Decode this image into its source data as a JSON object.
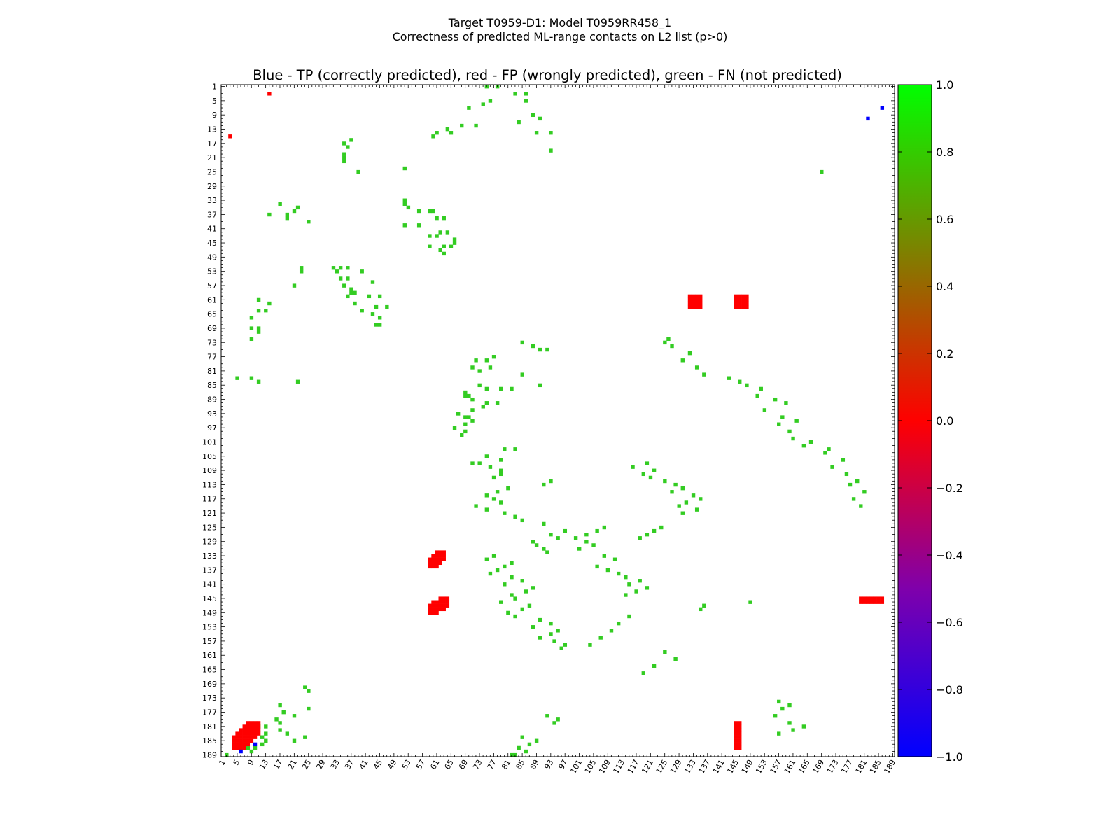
{
  "header": {
    "title_line1": "Target T0959-D1: Model T0959RR458_1",
    "title_line2": "Correctness of predicted ML-range contacts on L2 list (p>0)"
  },
  "chart_data": {
    "type": "heatmap",
    "title": "Blue - TP (correctly predicted), red - FP (wrongly predicted), green - FN (not predicted)",
    "xlabel": "",
    "ylabel": "",
    "xlim": [
      1,
      189
    ],
    "ylim": [
      1,
      189
    ],
    "tick_labels": [
      "1",
      "5",
      "9",
      "13",
      "17",
      "21",
      "25",
      "29",
      "33",
      "37",
      "41",
      "45",
      "49",
      "53",
      "57",
      "61",
      "65",
      "69",
      "73",
      "77",
      "81",
      "85",
      "89",
      "93",
      "97",
      "101",
      "105",
      "109",
      "113",
      "117",
      "121",
      "125",
      "129",
      "133",
      "137",
      "141",
      "145",
      "149",
      "153",
      "157",
      "161",
      "165",
      "169",
      "173",
      "177",
      "181",
      "185",
      "189"
    ],
    "colorbar": {
      "range": [
        -1.0,
        1.0
      ],
      "tick_labels": [
        "1.0",
        "0.8",
        "0.6",
        "0.4",
        "0.2",
        "0.0",
        "−0.2",
        "−0.4",
        "−0.6",
        "−0.8",
        "−1.0"
      ],
      "colors": [
        "#00ff00",
        "#ff0000",
        "#0000ff"
      ]
    },
    "colors": {
      "tp": "#0000ff",
      "fp": "#ff0000",
      "fn": "#33cc22"
    },
    "fp_regions": [
      {
        "i": [
          180,
          187
        ],
        "j": [
          4,
          11
        ]
      },
      {
        "i": [
          60,
          63
        ],
        "j": [
          132,
          135
        ]
      },
      {
        "i": [
          60,
          63
        ],
        "j": [
          145,
          148
        ]
      },
      {
        "i": [
          132,
          136
        ],
        "j": [
          59,
          63
        ]
      },
      {
        "i": [
          145,
          149
        ],
        "j": [
          59,
          64
        ]
      },
      {
        "i": [
          145,
          146
        ],
        "j": [
          180,
          186
        ]
      },
      {
        "i": [
          180,
          187
        ],
        "j": [
          145,
          146
        ]
      }
    ],
    "fp_points": [
      [
        3,
        14
      ],
      [
        15,
        3
      ]
    ],
    "tp_points": [
      [
        7,
        186
      ],
      [
        10,
        182
      ],
      [
        186,
        10
      ],
      [
        188,
        6
      ]
    ],
    "fn_points": [
      [
        1,
        75
      ],
      [
        1,
        78
      ],
      [
        3,
        83
      ],
      [
        3,
        86
      ],
      [
        5,
        86
      ],
      [
        5,
        76
      ],
      [
        6,
        74
      ],
      [
        7,
        70
      ],
      [
        9,
        88
      ],
      [
        10,
        90
      ],
      [
        11,
        84
      ],
      [
        12,
        68
      ],
      [
        12,
        72
      ],
      [
        13,
        64
      ],
      [
        14,
        61
      ],
      [
        14,
        65
      ],
      [
        14,
        89
      ],
      [
        14,
        93
      ],
      [
        15,
        60
      ],
      [
        16,
        37
      ],
      [
        17,
        35
      ],
      [
        18,
        36
      ],
      [
        19,
        93
      ],
      [
        20,
        35
      ],
      [
        21,
        35
      ],
      [
        22,
        35
      ],
      [
        24,
        52
      ],
      [
        25,
        39
      ],
      [
        25,
        169
      ],
      [
        33,
        52
      ],
      [
        34,
        52
      ],
      [
        34,
        17
      ],
      [
        35,
        53
      ],
      [
        35,
        22
      ],
      [
        36,
        21
      ],
      [
        36,
        56
      ],
      [
        36,
        59
      ],
      [
        36,
        60
      ],
      [
        37,
        14
      ],
      [
        37,
        19
      ],
      [
        38,
        19
      ],
      [
        38,
        61
      ],
      [
        38,
        63
      ],
      [
        39,
        25
      ],
      [
        40,
        52
      ],
      [
        40,
        56
      ],
      [
        42,
        62
      ],
      [
        42,
        64
      ],
      [
        43,
        59
      ],
      [
        43,
        61
      ],
      [
        44,
        66
      ],
      [
        45,
        66
      ],
      [
        46,
        63
      ],
      [
        46,
        65
      ],
      [
        46,
        59
      ],
      [
        47,
        62
      ],
      [
        48,
        63
      ],
      [
        52,
        23
      ],
      [
        53,
        23
      ],
      [
        52,
        32
      ],
      [
        52,
        34
      ],
      [
        53,
        33
      ],
      [
        52,
        36
      ],
      [
        53,
        40
      ],
      [
        55,
        34
      ],
      [
        55,
        36
      ],
      [
        56,
        43
      ],
      [
        57,
        35
      ],
      [
        57,
        21
      ],
      [
        58,
        37
      ],
      [
        59,
        37
      ],
      [
        59,
        38
      ],
      [
        60,
        36
      ],
      [
        60,
        42
      ],
      [
        60,
        45
      ],
      [
        61,
        11
      ],
      [
        62,
        38
      ],
      [
        62,
        14
      ],
      [
        63,
        44
      ],
      [
        63,
        47
      ],
      [
        64,
        11
      ],
      [
        64,
        40
      ],
      [
        64,
        13
      ],
      [
        65,
        43
      ],
      [
        66,
        9
      ],
      [
        66,
        45
      ],
      [
        68,
        44
      ],
      [
        68,
        45
      ],
      [
        69,
        9
      ],
      [
        69,
        11
      ],
      [
        70,
        11
      ],
      [
        72,
        9
      ],
      [
        73,
        85
      ],
      [
        74,
        88
      ],
      [
        75,
        92
      ],
      [
        75,
        90
      ],
      [
        77,
        77
      ],
      [
        78,
        72
      ],
      [
        78,
        75
      ],
      [
        80,
        71
      ],
      [
        80,
        76
      ],
      [
        81,
        73
      ],
      [
        82,
        85
      ],
      [
        83,
        5
      ],
      [
        83,
        9
      ],
      [
        84,
        22
      ],
      [
        84,
        11
      ],
      [
        85,
        90
      ],
      [
        85,
        73
      ],
      [
        86,
        82
      ],
      [
        86,
        79
      ],
      [
        86,
        75
      ],
      [
        87,
        69
      ],
      [
        88,
        70
      ],
      [
        88,
        69
      ],
      [
        89,
        71
      ],
      [
        90,
        75
      ],
      [
        90,
        78
      ],
      [
        91,
        74
      ],
      [
        92,
        71
      ],
      [
        93,
        67
      ],
      [
        94,
        69
      ],
      [
        94,
        70
      ],
      [
        95,
        71
      ],
      [
        96,
        69
      ],
      [
        97,
        66
      ],
      [
        98,
        69
      ],
      [
        99,
        68
      ],
      [
        103,
        83
      ],
      [
        103,
        80
      ],
      [
        105,
        75
      ],
      [
        106,
        79
      ],
      [
        107,
        73
      ],
      [
        107,
        71
      ],
      [
        108,
        76
      ],
      [
        109,
        79
      ],
      [
        110,
        79
      ],
      [
        111,
        77
      ],
      [
        112,
        93
      ],
      [
        113,
        91
      ],
      [
        114,
        81
      ],
      [
        115,
        78
      ],
      [
        116,
        75
      ],
      [
        117,
        77
      ],
      [
        118,
        79
      ],
      [
        119,
        72
      ],
      [
        120,
        75
      ],
      [
        121,
        80
      ],
      [
        122,
        83
      ],
      [
        123,
        85
      ],
      [
        124,
        91
      ],
      [
        126,
        97
      ],
      [
        127,
        93
      ],
      [
        128,
        95
      ],
      [
        129,
        88
      ],
      [
        130,
        89
      ],
      [
        131,
        91
      ],
      [
        132,
        92
      ],
      [
        133,
        77
      ],
      [
        134,
        75
      ],
      [
        135,
        82
      ],
      [
        136,
        80
      ],
      [
        137,
        78
      ],
      [
        138,
        76
      ],
      [
        139,
        82
      ],
      [
        140,
        85
      ],
      [
        141,
        80
      ],
      [
        142,
        88
      ],
      [
        143,
        86
      ],
      [
        144,
        82
      ],
      [
        145,
        83
      ],
      [
        146,
        79
      ],
      [
        147,
        87
      ],
      [
        148,
        85
      ],
      [
        149,
        81
      ],
      [
        150,
        83
      ],
      [
        151,
        90
      ],
      [
        152,
        93
      ],
      [
        153,
        88
      ],
      [
        154,
        95
      ],
      [
        155,
        93
      ],
      [
        156,
        90
      ],
      [
        157,
        94
      ],
      [
        158,
        97
      ],
      [
        159,
        96
      ],
      [
        125,
        108
      ],
      [
        126,
        106
      ],
      [
        127,
        103
      ],
      [
        128,
        100
      ],
      [
        129,
        103
      ],
      [
        130,
        105
      ],
      [
        131,
        101
      ],
      [
        133,
        108
      ],
      [
        134,
        111
      ],
      [
        136,
        106
      ],
      [
        137,
        109
      ],
      [
        138,
        112
      ],
      [
        139,
        114
      ],
      [
        140,
        118
      ],
      [
        141,
        115
      ],
      [
        142,
        120
      ],
      [
        143,
        117
      ],
      [
        144,
        114
      ],
      [
        107,
        120
      ],
      [
        108,
        116
      ],
      [
        109,
        122
      ],
      [
        110,
        119
      ],
      [
        111,
        121
      ],
      [
        112,
        125
      ],
      [
        113,
        128
      ],
      [
        114,
        130
      ],
      [
        115,
        127
      ],
      [
        116,
        133
      ],
      [
        117,
        135
      ],
      [
        118,
        131
      ],
      [
        119,
        129
      ],
      [
        120,
        134
      ],
      [
        121,
        130
      ],
      [
        72,
        126
      ],
      [
        73,
        125
      ],
      [
        74,
        127
      ],
      [
        76,
        132
      ],
      [
        78,
        130
      ],
      [
        80,
        134
      ],
      [
        82,
        136
      ],
      [
        83,
        143
      ],
      [
        84,
        146
      ],
      [
        85,
        148
      ],
      [
        86,
        152
      ],
      [
        88,
        151
      ],
      [
        89,
        156
      ],
      [
        90,
        159
      ],
      [
        92,
        153
      ],
      [
        94,
        158
      ],
      [
        95,
        162
      ],
      [
        96,
        157
      ],
      [
        98,
        160
      ],
      [
        100,
        161
      ],
      [
        101,
        166
      ],
      [
        102,
        164
      ],
      [
        103,
        171
      ],
      [
        104,
        170
      ],
      [
        106,
        175
      ],
      [
        108,
        172
      ],
      [
        110,
        176
      ],
      [
        112,
        179
      ],
      [
        113,
        177
      ],
      [
        115,
        181
      ],
      [
        117,
        178
      ],
      [
        119,
        180
      ],
      [
        125,
        124
      ],
      [
        126,
        122
      ],
      [
        127,
        120
      ],
      [
        128,
        118
      ],
      [
        146,
        149
      ],
      [
        147,
        136
      ],
      [
        148,
        135
      ],
      [
        150,
        115
      ],
      [
        152,
        112
      ],
      [
        154,
        110
      ],
      [
        156,
        107
      ],
      [
        158,
        104
      ],
      [
        160,
        125
      ],
      [
        162,
        128
      ],
      [
        164,
        122
      ],
      [
        166,
        119
      ],
      [
        175,
        17
      ],
      [
        176,
        25
      ],
      [
        177,
        18
      ],
      [
        178,
        21
      ],
      [
        179,
        16
      ],
      [
        180,
        17
      ],
      [
        181,
        13
      ],
      [
        181,
        11
      ],
      [
        182,
        17
      ],
      [
        183,
        13
      ],
      [
        184,
        12
      ],
      [
        185,
        13
      ],
      [
        186,
        12
      ],
      [
        187,
        10
      ],
      [
        188,
        9
      ],
      [
        189,
        2
      ],
      [
        180,
        160
      ],
      [
        181,
        164
      ],
      [
        182,
        161
      ],
      [
        183,
        157
      ],
      [
        184,
        85
      ],
      [
        185,
        89
      ],
      [
        186,
        87
      ],
      [
        187,
        84
      ],
      [
        188,
        86
      ],
      [
        189,
        82
      ],
      [
        189,
        83
      ],
      [
        178,
        92
      ],
      [
        179,
        95
      ],
      [
        180,
        94
      ],
      [
        170,
        24
      ],
      [
        171,
        25
      ],
      [
        174,
        157
      ],
      [
        175,
        160
      ],
      [
        176,
        158
      ],
      [
        178,
        156
      ],
      [
        183,
        19
      ],
      [
        184,
        24
      ],
      [
        185,
        21
      ],
      [
        186,
        6
      ],
      [
        187,
        8
      ]
    ]
  }
}
